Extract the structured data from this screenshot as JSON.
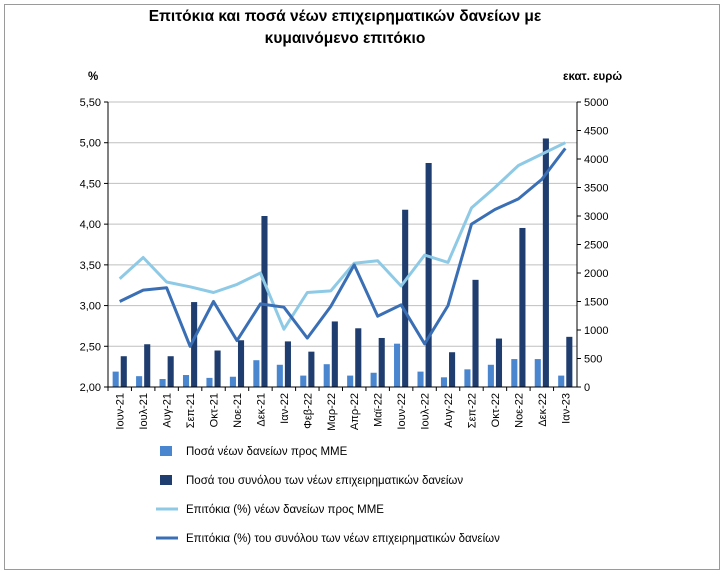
{
  "chart_data": {
    "type": "bar",
    "title_line1": "Επιτόκια και ποσά νέων επιχειρηματικών δανείων με",
    "title_line2": "κυμαινόμενο επιτόκιο",
    "ylabel_left": "%",
    "ylabel_right": "εκατ. ευρώ",
    "ylim_left": [
      2.0,
      5.5
    ],
    "ylim_right": [
      0,
      5000
    ],
    "yticks_left": [
      "2,00",
      "2,50",
      "3,00",
      "3,50",
      "4,00",
      "4,50",
      "5,00",
      "5,50"
    ],
    "yticks_right": [
      "0",
      "500",
      "1000",
      "1500",
      "2000",
      "2500",
      "3000",
      "3500",
      "4000",
      "4500",
      "5000"
    ],
    "categories": [
      "Ιουν-21",
      "Ιουλ-21",
      "Αυγ-21",
      "Σεπ-21",
      "Οκτ-21",
      "Νοε-21",
      "Δεκ-21",
      "Ιαν-22",
      "Φεβ-22",
      "Μαρ-22",
      "Απρ-22",
      "Μαϊ-22",
      "Ιουν-22",
      "Ιουλ-22",
      "Αυγ-22",
      "Σεπ-22",
      "Οκτ-22",
      "Νοε-22",
      "Δεκ-22",
      "Ιαν-23"
    ],
    "series": [
      {
        "name": "Ποσά νέων δανείων προς ΜΜΕ",
        "kind": "bar",
        "axis": "right",
        "color": "#4a86d0",
        "values": [
          270,
          190,
          140,
          210,
          160,
          180,
          470,
          390,
          200,
          400,
          200,
          250,
          760,
          270,
          170,
          310,
          390,
          490,
          490,
          200
        ]
      },
      {
        "name": "Ποσά του συνόλου των νέων επιχειρηματικών δανείων",
        "kind": "bar",
        "axis": "right",
        "color": "#1f3d6e",
        "values": [
          540,
          750,
          540,
          1490,
          640,
          820,
          3000,
          800,
          620,
          1150,
          1030,
          860,
          3110,
          3930,
          610,
          1880,
          850,
          2790,
          4360,
          880
        ]
      },
      {
        "name": "Επιτόκια (%) νέων δανείων προς ΜΜΕ",
        "kind": "line",
        "axis": "left",
        "color": "#8ecae6",
        "values": [
          3.33,
          3.59,
          3.29,
          3.23,
          3.16,
          3.26,
          3.4,
          2.71,
          3.16,
          3.18,
          3.52,
          3.55,
          3.24,
          3.62,
          3.53,
          4.2,
          4.45,
          4.72,
          4.86,
          5.0
        ]
      },
      {
        "name": "Επιτόκια (%) του συνόλου των νέων επιχειρηματικών δανείων",
        "kind": "line",
        "axis": "left",
        "color": "#3a6fb5",
        "values": [
          3.05,
          3.19,
          3.22,
          2.5,
          3.05,
          2.57,
          3.02,
          2.98,
          2.6,
          2.99,
          3.5,
          2.87,
          3.01,
          2.53,
          3.0,
          4.0,
          4.18,
          4.31,
          4.55,
          4.93
        ]
      }
    ],
    "legend_position": "bottom"
  }
}
